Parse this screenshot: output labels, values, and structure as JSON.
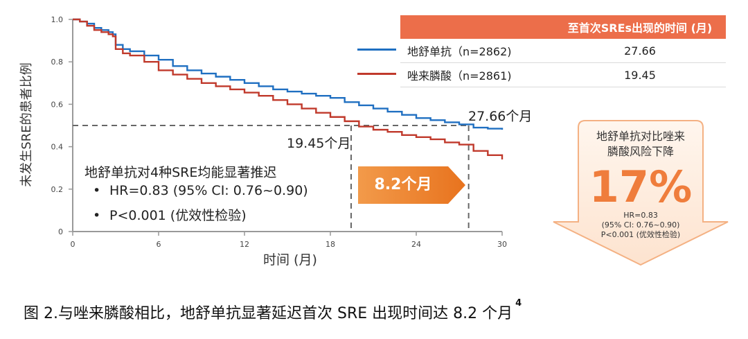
{
  "chart_data": {
    "type": "line",
    "ylabel": "未发生SRE的患者比例",
    "xlabel": "时间 (月)",
    "xlim": [
      0,
      30
    ],
    "ylim": [
      0,
      1.0
    ],
    "xticks": [
      "0",
      "6",
      "12",
      "18",
      "24",
      "30"
    ],
    "yticks": [
      "0",
      "0.2",
      "0.4",
      "0.6",
      "0.8",
      "1.0"
    ],
    "grid": false,
    "reference_line_y": 0.5,
    "series": [
      {
        "name": "地舒单抗 (n=2862)",
        "color": "#1f6fc1",
        "median": "27.66",
        "x": [
          0,
          0.5,
          1,
          1.5,
          2,
          2.5,
          2.8,
          3,
          3.5,
          4,
          5,
          6,
          7,
          8,
          9,
          10,
          11,
          12,
          13,
          14,
          15,
          16,
          17,
          18,
          19,
          20,
          21,
          22,
          23,
          24,
          25,
          26,
          27,
          28,
          29,
          30
        ],
        "y": [
          1.0,
          0.99,
          0.98,
          0.96,
          0.95,
          0.94,
          0.93,
          0.88,
          0.86,
          0.85,
          0.83,
          0.81,
          0.78,
          0.76,
          0.745,
          0.73,
          0.715,
          0.7,
          0.685,
          0.67,
          0.66,
          0.65,
          0.64,
          0.63,
          0.61,
          0.595,
          0.58,
          0.565,
          0.55,
          0.535,
          0.525,
          0.515,
          0.505,
          0.49,
          0.485,
          0.48
        ]
      },
      {
        "name": "唑来膦酸 (n=2861)",
        "color": "#c0392b",
        "median": "19.45",
        "x": [
          0,
          0.5,
          1,
          1.5,
          2,
          2.5,
          2.8,
          3,
          3.5,
          4,
          5,
          6,
          7,
          8,
          9,
          10,
          11,
          12,
          13,
          14,
          15,
          16,
          17,
          18,
          19,
          20,
          21,
          22,
          23,
          24,
          25,
          26,
          27,
          28,
          29,
          30
        ],
        "y": [
          1.0,
          0.99,
          0.97,
          0.95,
          0.94,
          0.93,
          0.92,
          0.86,
          0.84,
          0.83,
          0.8,
          0.76,
          0.74,
          0.72,
          0.7,
          0.685,
          0.67,
          0.655,
          0.64,
          0.62,
          0.6,
          0.58,
          0.56,
          0.54,
          0.52,
          0.495,
          0.48,
          0.47,
          0.455,
          0.445,
          0.435,
          0.42,
          0.41,
          0.38,
          0.36,
          0.34
        ]
      }
    ]
  },
  "legend_table": {
    "header_col2": "至首次SREs出现的时间 (月)",
    "rows": [
      {
        "label": "地舒单抗（n=2862)",
        "value": "27.66",
        "color": "#1f6fc1"
      },
      {
        "label": "唑来膦酸（n=2861)",
        "value": "19.45",
        "color": "#c0392b"
      }
    ]
  },
  "annotations": {
    "median_zol": "19.45个月",
    "median_den": "27.66个月",
    "gain": "8.2个月",
    "note_title": "地舒单抗对4种SRE均能显著推迟",
    "bullet": "•",
    "note_hr": "HR=0.83 (95% CI: 0.76~0.90)",
    "note_p": "P<0.001 (优效性检验)"
  },
  "risk_box": {
    "title_line1": "地舒单抗对比唑来",
    "title_line2": "膦酸风险下降",
    "percent": "17%",
    "stat_hr": "HR=0.83",
    "stat_ci": "(95% CI: 0.76~0.90)",
    "stat_p": "P<0.001 (优效性检验)",
    "color": "#ef7d3c"
  },
  "caption": {
    "text": "图 2.与唑来膦酸相比，地舒单抗显著延迟首次 SRE 出现时间达 8.2 个月",
    "ref": "4"
  }
}
